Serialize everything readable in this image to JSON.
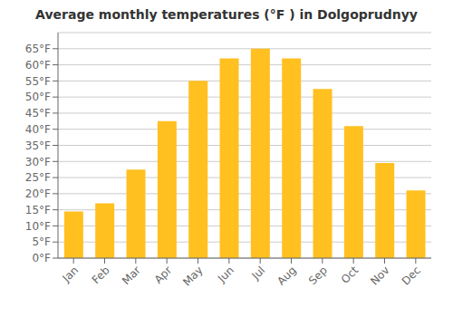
{
  "chart_data": {
    "type": "bar",
    "title": "Average monthly temperatures (°F ) in Dolgoprudnyy",
    "categories": [
      "Jan",
      "Feb",
      "Mar",
      "Apr",
      "May",
      "Jun",
      "Jul",
      "Aug",
      "Sep",
      "Oct",
      "Nov",
      "Dec"
    ],
    "values": [
      14.5,
      17,
      27.5,
      42.5,
      55,
      62,
      65,
      62,
      52.5,
      41,
      29.5,
      21
    ],
    "color": "#FFC020",
    "ylim": [
      0,
      70
    ],
    "yticks": [
      {
        "value": 0,
        "label": "0°F"
      },
      {
        "value": 5,
        "label": "5°F"
      },
      {
        "value": 10,
        "label": "10°F"
      },
      {
        "value": 15,
        "label": "15°F"
      },
      {
        "value": 20,
        "label": "20°F"
      },
      {
        "value": 25,
        "label": "25°F"
      },
      {
        "value": 30,
        "label": "30°F"
      },
      {
        "value": 35,
        "label": "35°F"
      },
      {
        "value": 40,
        "label": "40°F"
      },
      {
        "value": 45,
        "label": "45°F"
      },
      {
        "value": 50,
        "label": "50°F"
      },
      {
        "value": 55,
        "label": "55°F"
      },
      {
        "value": 60,
        "label": "60°F"
      },
      {
        "value": 65,
        "label": "65°F"
      }
    ],
    "grid": true
  }
}
